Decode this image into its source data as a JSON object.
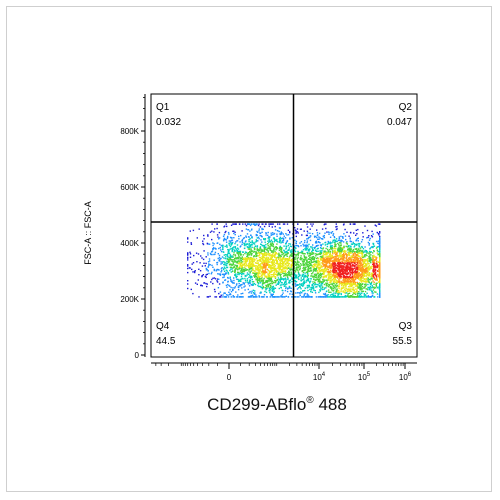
{
  "chart_data": {
    "type": "scatter",
    "plot_kind": "flow-cytometry density dot plot with quadrant gate",
    "xlabel": "CD299-ABflo",
    "xlabel_superscript": "®",
    "xlabel_suffix": " 488",
    "ylabel": "FSC-A :: FSC-A",
    "x_scale": "biexponential",
    "x_tick_labels": [
      {
        "value": 0,
        "label": "0",
        "exp": ""
      },
      {
        "value": 10000,
        "label": "10",
        "exp": "4"
      },
      {
        "value": 100000,
        "label": "10",
        "exp": "5"
      },
      {
        "value": 1000000,
        "label": "10",
        "exp": "6"
      }
    ],
    "y_ticks": [
      {
        "value": 0,
        "label": "0"
      },
      {
        "value": 200000,
        "label": "200K"
      },
      {
        "value": 400000,
        "label": "400K"
      },
      {
        "value": 600000,
        "label": "600K"
      },
      {
        "value": 800000,
        "label": "800K"
      }
    ],
    "ylim": [
      0,
      920000
    ],
    "gate": {
      "x_threshold": 2500,
      "y_threshold": 475000
    },
    "quadrants": [
      {
        "name": "Q1",
        "value": "0.032",
        "position": "top-left"
      },
      {
        "name": "Q2",
        "value": "0.047",
        "position": "top-right"
      },
      {
        "name": "Q3",
        "value": "55.5",
        "position": "bottom-right"
      },
      {
        "name": "Q4",
        "value": "44.5",
        "position": "bottom-left"
      }
    ],
    "populations": [
      {
        "center_x": 400,
        "center_y": 330000,
        "share_percent": 44.5
      },
      {
        "center_x": 40000,
        "center_y": 310000,
        "share_percent": 55.5
      }
    ],
    "density_colors": [
      "#1b1bd6",
      "#1e90ff",
      "#00d0c0",
      "#4cd43c",
      "#e8e81c",
      "#ff9a1a",
      "#f02020"
    ]
  }
}
